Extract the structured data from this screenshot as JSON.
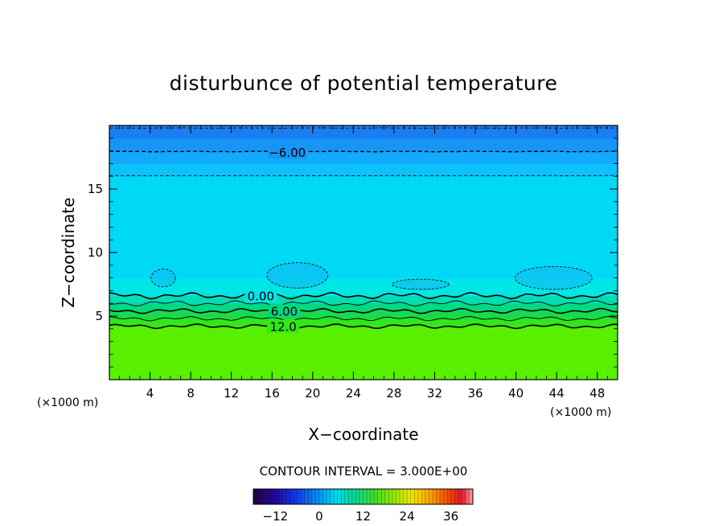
{
  "chart_data": {
    "type": "heatmap",
    "title": "disturbunce of potential temperature",
    "xlabel": "X−coordinate",
    "ylabel": "Z−coordinate",
    "x_unit_left": "(×1000 m)",
    "x_unit_right": "(×1000 m)",
    "xlim": [
      0,
      50
    ],
    "ylim": [
      0,
      20
    ],
    "x_ticks": [
      4,
      8,
      12,
      16,
      20,
      24,
      28,
      32,
      36,
      40,
      44,
      48
    ],
    "y_ticks": [
      5,
      10,
      15
    ],
    "contour_interval_label": "CONTOUR INTERVAL = 3.000E+00",
    "contour_labels": [
      {
        "text": "−6.00",
        "x": 17.5,
        "z": 17.9
      },
      {
        "text": "0.00",
        "x": 14.9,
        "z": 6.6
      },
      {
        "text": "6.00",
        "x": 17.2,
        "z": 5.4
      },
      {
        "text": "12.0",
        "x": 17.1,
        "z": 4.2
      }
    ],
    "field_bands": [
      {
        "z_from": 0,
        "z_to": 4.2,
        "value": 16,
        "color": "#59f000"
      },
      {
        "z_from": 4.2,
        "z_to": 4.8,
        "value": 14,
        "color": "#33e61a"
      },
      {
        "z_from": 4.8,
        "z_to": 5.4,
        "value": 11,
        "color": "#1ad94d"
      },
      {
        "z_from": 5.4,
        "z_to": 6.0,
        "value": 8,
        "color": "#00d980"
      },
      {
        "z_from": 6.0,
        "z_to": 6.6,
        "value": 5,
        "color": "#00dcb4"
      },
      {
        "z_from": 6.6,
        "z_to": 8.0,
        "value": 2,
        "color": "#00e5e6"
      },
      {
        "z_from": 8.0,
        "z_to": 16.0,
        "value": -1,
        "color": "#00d9f5"
      },
      {
        "z_from": 16.0,
        "z_to": 17.0,
        "value": -4,
        "color": "#0bc2fb"
      },
      {
        "z_from": 17.0,
        "z_to": 18.0,
        "value": -5,
        "color": "#12aafa"
      },
      {
        "z_from": 18.0,
        "z_to": 19.0,
        "value": -7,
        "color": "#1795f6"
      },
      {
        "z_from": 19.0,
        "z_to": 20.0,
        "value": -9,
        "color": "#1a7ef2"
      }
    ],
    "colorbar": {
      "range": [
        -18,
        42
      ],
      "ticks": [
        -12,
        0,
        12,
        24,
        36
      ]
    }
  }
}
